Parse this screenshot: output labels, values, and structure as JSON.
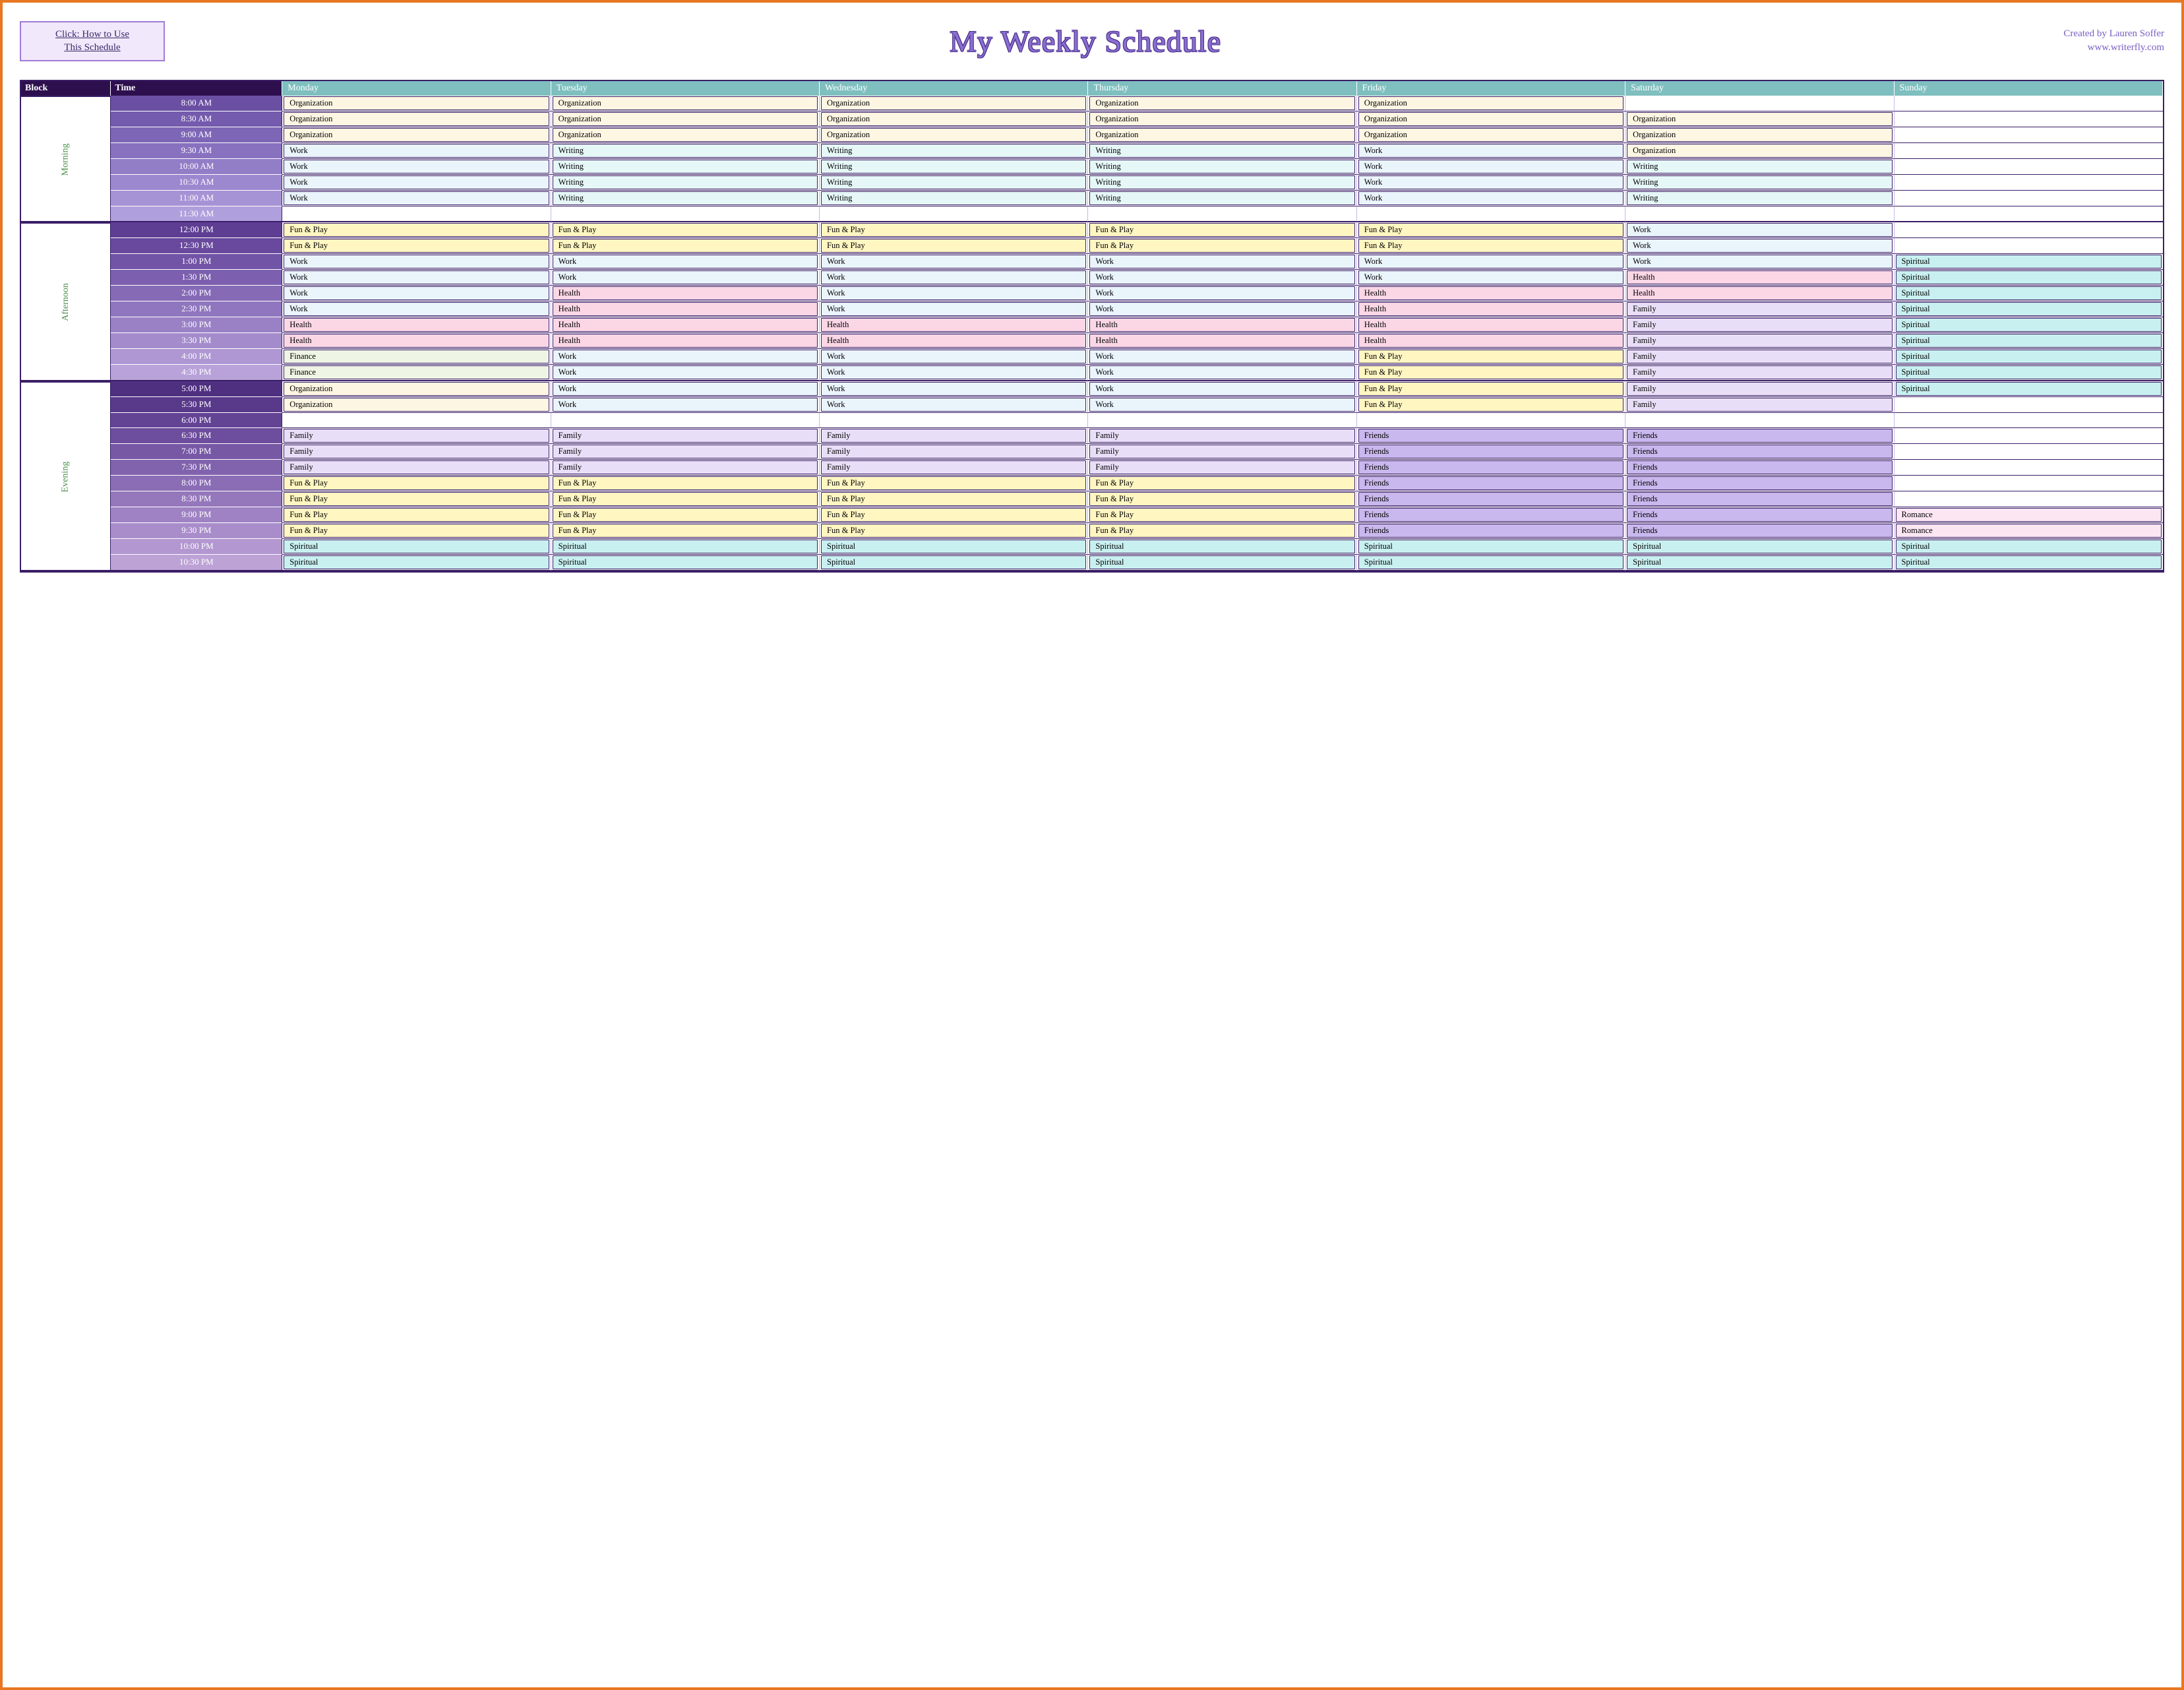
{
  "howto": {
    "line1": "Click:  How to Use",
    "line2": "This Schedule"
  },
  "title": "My Weekly Schedule",
  "credit": {
    "line1": "Created by Lauren Soffer",
    "line2": "www.writerfly.com"
  },
  "headers": {
    "block": "Block",
    "time": "Time",
    "days": [
      "Monday",
      "Tuesday",
      "Wednesday",
      "Thursday",
      "Friday",
      "Saturday",
      "Sunday"
    ]
  },
  "colors": {
    "frame_border": "#e87722",
    "header_dark": "#2d0f4d",
    "header_day": "#7fbfbf",
    "block_label": "#4a8f4a",
    "title_fill": "#8a6fd1",
    "title_outline": "#4a2e8a",
    "credit_text": "#7a5fc4",
    "howto_bg": "#f1e8fb",
    "howto_border": "#a07bd6"
  },
  "time_gradients": {
    "Morning": [
      "#6a4fa3",
      "#745bad",
      "#7e66b6",
      "#8871bf",
      "#927dc7",
      "#9c88cf",
      "#a693d6",
      "#b09fdd"
    ],
    "Afternoon": [
      "#5e3e93",
      "#68499d",
      "#7254a6",
      "#7c5fae",
      "#866ab6",
      "#9076be",
      "#9a81c5",
      "#a48ccc",
      "#ae97d3",
      "#b8a2d9"
    ],
    "Evening": [
      "#4f2f80",
      "#59398a",
      "#634394",
      "#6d4d9d",
      "#7758a5",
      "#8162ad",
      "#8b6db5",
      "#9577bc",
      "#9f82c3",
      "#a98dca",
      "#b397d0",
      "#bda2d6"
    ]
  },
  "category_colors": {
    "Organization": "#fdf6e3",
    "Work": "#eaf4fb",
    "Writing": "#e6f7f7",
    "Fun & Play": "#fff6c2",
    "Health": "#fbd7e6",
    "Finance": "#eef5e4",
    "Family": "#e9def7",
    "Friends": "#c9b8ee",
    "Spiritual": "#c9f0f0",
    "Romance": "#fbe6f2",
    "": "transparent"
  },
  "blocks": [
    {
      "label": "Morning",
      "rows": [
        {
          "time": "8:00 AM",
          "cells": [
            "Organization",
            "Organization",
            "Organization",
            "Organization",
            "Organization",
            "",
            ""
          ]
        },
        {
          "time": "8:30 AM",
          "cells": [
            "Organization",
            "Organization",
            "Organization",
            "Organization",
            "Organization",
            "Organization",
            ""
          ]
        },
        {
          "time": "9:00 AM",
          "cells": [
            "Organization",
            "Organization",
            "Organization",
            "Organization",
            "Organization",
            "Organization",
            ""
          ]
        },
        {
          "time": "9:30 AM",
          "cells": [
            "Work",
            "Writing",
            "Writing",
            "Writing",
            "Work",
            "Organization",
            ""
          ]
        },
        {
          "time": "10:00 AM",
          "cells": [
            "Work",
            "Writing",
            "Writing",
            "Writing",
            "Work",
            "Writing",
            ""
          ]
        },
        {
          "time": "10:30 AM",
          "cells": [
            "Work",
            "Writing",
            "Writing",
            "Writing",
            "Work",
            "Writing",
            ""
          ]
        },
        {
          "time": "11:00 AM",
          "cells": [
            "Work",
            "Writing",
            "Writing",
            "Writing",
            "Work",
            "Writing",
            ""
          ]
        },
        {
          "time": "11:30 AM",
          "cells": [
            "",
            "",
            "",
            "",
            "",
            "",
            ""
          ]
        }
      ]
    },
    {
      "label": "Afternoon",
      "rows": [
        {
          "time": "12:00 PM",
          "cells": [
            "Fun & Play",
            "Fun & Play",
            "Fun & Play",
            "Fun & Play",
            "Fun & Play",
            "Work",
            ""
          ]
        },
        {
          "time": "12:30 PM",
          "cells": [
            "Fun & Play",
            "Fun & Play",
            "Fun & Play",
            "Fun & Play",
            "Fun & Play",
            "Work",
            ""
          ]
        },
        {
          "time": "1:00 PM",
          "cells": [
            "Work",
            "Work",
            "Work",
            "Work",
            "Work",
            "Work",
            "Spiritual"
          ]
        },
        {
          "time": "1:30 PM",
          "cells": [
            "Work",
            "Work",
            "Work",
            "Work",
            "Work",
            "Health",
            "Spiritual"
          ]
        },
        {
          "time": "2:00 PM",
          "cells": [
            "Work",
            "Health",
            "Work",
            "Work",
            "Health",
            "Health",
            "Spiritual"
          ]
        },
        {
          "time": "2:30 PM",
          "cells": [
            "Work",
            "Health",
            "Work",
            "Work",
            "Health",
            "Family",
            "Spiritual"
          ]
        },
        {
          "time": "3:00 PM",
          "cells": [
            "Health",
            "Health",
            "Health",
            "Health",
            "Health",
            "Family",
            "Spiritual"
          ]
        },
        {
          "time": "3:30 PM",
          "cells": [
            "Health",
            "Health",
            "Health",
            "Health",
            "Health",
            "Family",
            "Spiritual"
          ]
        },
        {
          "time": "4:00 PM",
          "cells": [
            "Finance",
            "Work",
            "Work",
            "Work",
            "Fun & Play",
            "Family",
            "Spiritual"
          ]
        },
        {
          "time": "4:30 PM",
          "cells": [
            "Finance",
            "Work",
            "Work",
            "Work",
            "Fun & Play",
            "Family",
            "Spiritual"
          ]
        }
      ]
    },
    {
      "label": "Evening",
      "rows": [
        {
          "time": "5:00 PM",
          "cells": [
            "Organization",
            "Work",
            "Work",
            "Work",
            "Fun & Play",
            "Family",
            "Spiritual"
          ]
        },
        {
          "time": "5:30 PM",
          "cells": [
            "Organization",
            "Work",
            "Work",
            "Work",
            "Fun & Play",
            "Family",
            ""
          ]
        },
        {
          "time": "6:00 PM",
          "cells": [
            "",
            "",
            "",
            "",
            "",
            "",
            ""
          ]
        },
        {
          "time": "6:30 PM",
          "cells": [
            "Family",
            "Family",
            "Family",
            "Family",
            "Friends",
            "Friends",
            ""
          ]
        },
        {
          "time": "7:00 PM",
          "cells": [
            "Family",
            "Family",
            "Family",
            "Family",
            "Friends",
            "Friends",
            ""
          ]
        },
        {
          "time": "7:30 PM",
          "cells": [
            "Family",
            "Family",
            "Family",
            "Family",
            "Friends",
            "Friends",
            ""
          ]
        },
        {
          "time": "8:00 PM",
          "cells": [
            "Fun & Play",
            "Fun & Play",
            "Fun & Play",
            "Fun & Play",
            "Friends",
            "Friends",
            ""
          ]
        },
        {
          "time": "8:30 PM",
          "cells": [
            "Fun & Play",
            "Fun & Play",
            "Fun & Play",
            "Fun & Play",
            "Friends",
            "Friends",
            ""
          ]
        },
        {
          "time": "9:00 PM",
          "cells": [
            "Fun & Play",
            "Fun & Play",
            "Fun & Play",
            "Fun & Play",
            "Friends",
            "Friends",
            "Romance"
          ]
        },
        {
          "time": "9:30 PM",
          "cells": [
            "Fun & Play",
            "Fun & Play",
            "Fun & Play",
            "Fun & Play",
            "Friends",
            "Friends",
            "Romance"
          ]
        },
        {
          "time": "10:00 PM",
          "cells": [
            "Spiritual",
            "Spiritual",
            "Spiritual",
            "Spiritual",
            "Spiritual",
            "Spiritual",
            "Spiritual"
          ]
        },
        {
          "time": "10:30 PM",
          "cells": [
            "Spiritual",
            "Spiritual",
            "Spiritual",
            "Spiritual",
            "Spiritual",
            "Spiritual",
            "Spiritual"
          ]
        }
      ]
    }
  ]
}
